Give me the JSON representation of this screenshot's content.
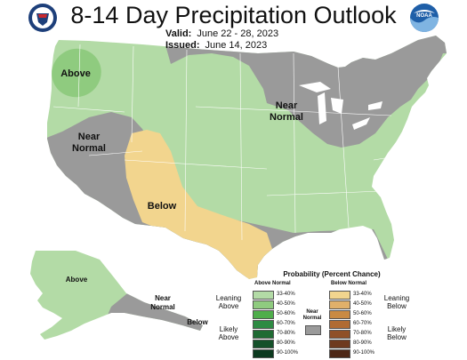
{
  "title": "8-14 Day Precipitation Outlook",
  "valid": {
    "label": "Valid:",
    "value": "June 22 - 28, 2023"
  },
  "issued": {
    "label": "Issued:",
    "value": "June 14, 2023"
  },
  "logos": {
    "left": "doc-seal-icon",
    "right": "noaa-logo-icon"
  },
  "map_labels": {
    "above_nw": "Above",
    "near_normal_west": [
      "Near",
      "Normal"
    ],
    "near_normal_north": [
      "Near",
      "Normal"
    ],
    "below_sw": "Below",
    "above_ak": "Above",
    "near_normal_ak": [
      "Near",
      "Normal"
    ],
    "below_ak": "Below"
  },
  "colors": {
    "above_33_40": "#b3dba6",
    "above_40_50": "#8fcb7f",
    "near_normal": "#9a9a9a",
    "below_33_40": "#f2d58e",
    "water": "#ffffff",
    "border": "#ffffff"
  },
  "legend": {
    "title": "Probability (Percent Chance)",
    "above_header": "Above Normal",
    "below_header": "Below Normal",
    "near_normal": [
      "Near",
      "Normal"
    ],
    "leaning_above": [
      "Leaning",
      "Above"
    ],
    "likely_above": [
      "Likely",
      "Above"
    ],
    "leaning_below": [
      "Leaning",
      "Below"
    ],
    "likely_below": [
      "Likely",
      "Below"
    ],
    "above_swatches": [
      {
        "label": "33-40%",
        "color": "#b3dba6"
      },
      {
        "label": "40-50%",
        "color": "#8fcb7f"
      },
      {
        "label": "50-60%",
        "color": "#4fae4b"
      },
      {
        "label": "60-70%",
        "color": "#2e8b43"
      },
      {
        "label": "70-80%",
        "color": "#1f6b33"
      },
      {
        "label": "80-90%",
        "color": "#15512a"
      },
      {
        "label": "90-100%",
        "color": "#0c3a1f"
      }
    ],
    "below_swatches": [
      {
        "label": "33-40%",
        "color": "#f2d58e"
      },
      {
        "label": "40-50%",
        "color": "#e0b06a"
      },
      {
        "label": "50-60%",
        "color": "#c98a43"
      },
      {
        "label": "60-70%",
        "color": "#b06b33"
      },
      {
        "label": "70-80%",
        "color": "#8f5028"
      },
      {
        "label": "80-90%",
        "color": "#6e3a1f"
      },
      {
        "label": "90-100%",
        "color": "#4d2716"
      }
    ],
    "near_swatch_color": "#9a9a9a"
  }
}
